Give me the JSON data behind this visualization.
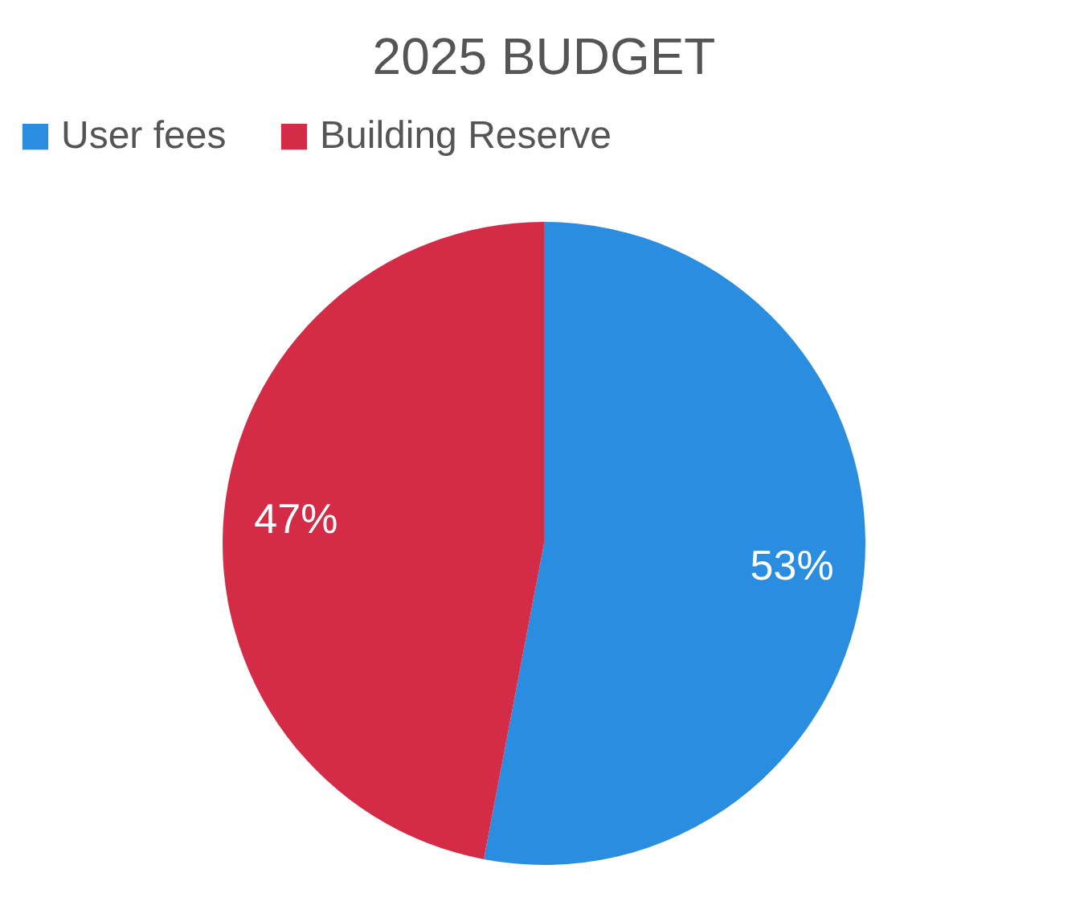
{
  "chart_data": {
    "type": "pie",
    "title": "2025 BUDGET",
    "categories": [
      "User fees",
      "Building Reserve"
    ],
    "values": [
      53,
      47
    ],
    "colors": [
      "#2a8de0",
      "#d42b47"
    ],
    "value_labels": [
      "53%",
      "47%"
    ],
    "legend": "top"
  }
}
